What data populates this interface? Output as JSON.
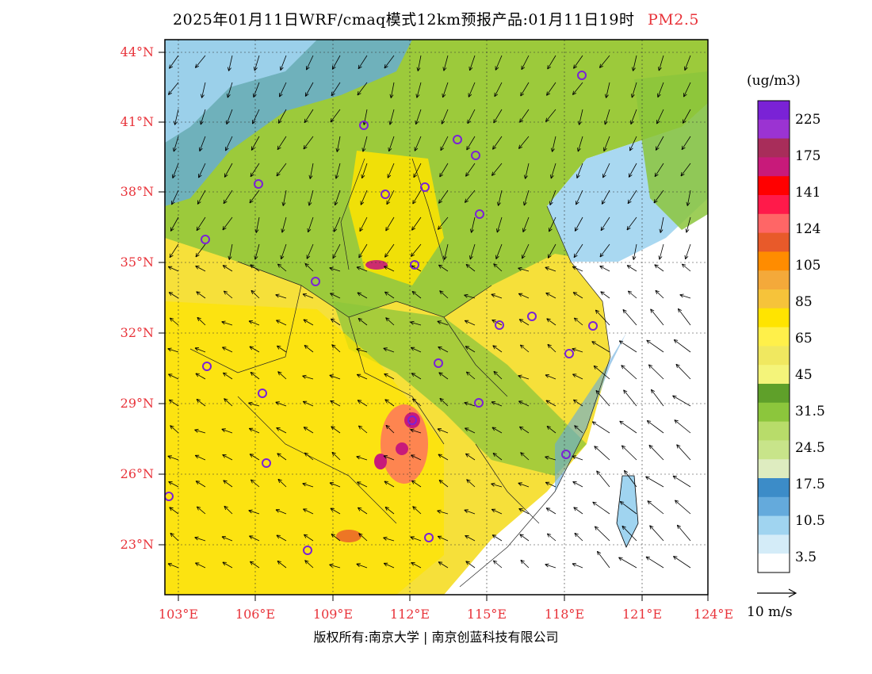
{
  "title": {
    "main": "2025年01月11日WRF/cmaq模式12km预报产品:01月11日19时",
    "species": "PM2.5"
  },
  "map": {
    "lat_labels": [
      "44°N",
      "41°N",
      "38°N",
      "35°N",
      "32°N",
      "29°N",
      "26°N",
      "23°N"
    ],
    "lon_labels": [
      "103°E",
      "106°E",
      "109°E",
      "112°E",
      "115°E",
      "118°E",
      "121°E",
      "124°E"
    ]
  },
  "colorbar": {
    "unit": "(ug/m3)",
    "labels": [
      "225",
      "175",
      "141",
      "124",
      "105",
      "85",
      "65",
      "45",
      "31.5",
      "24.5",
      "17.5",
      "10.5",
      "3.5"
    ],
    "colors": [
      "#7a22d6",
      "#9b33d2",
      "#a82d5a",
      "#c81a7a",
      "#ff0000",
      "#ff1a4a",
      "#ff6666",
      "#e85a2a",
      "#ff8c00",
      "#f4a93a",
      "#f6c33a",
      "#ffe400",
      "#fff04a",
      "#f0e860",
      "#f4f47a",
      "#5fa02a",
      "#8cc63c",
      "#b8dc6a",
      "#c8e48a",
      "#deecc0",
      "#3c8cc8",
      "#64aadc",
      "#a0d4f0",
      "#d4ecf8",
      "#ffffff"
    ],
    "ref_vector": "10 m/s"
  },
  "copyright": "版权所有:南京大学 | 南京创蓝科技有限公司",
  "colors": {
    "label_red": "#e8333a",
    "sea_white": "#ffffff",
    "land_yellow": "#f6e03a"
  }
}
